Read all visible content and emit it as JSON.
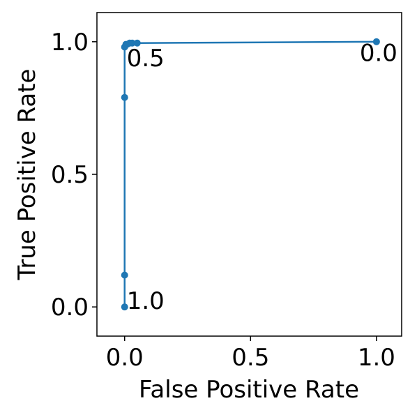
{
  "chart_data": {
    "type": "line",
    "x_label": "False Positive Rate",
    "y_label": "True Positive Rate",
    "x": [
      0,
      0,
      0,
      0,
      0.005,
      0.01,
      0.02,
      0.03,
      0.05,
      1
    ],
    "series": [
      {
        "color": "#1f77b4",
        "values": [
          0,
          0.12,
          0.79,
          0.98,
          0.99,
          0.99,
          0.995,
          0.995,
          0.995,
          1
        ]
      }
    ],
    "point_labels": [
      "1.0",
      null,
      null,
      "0.5",
      null,
      null,
      null,
      null,
      null,
      "0.0"
    ],
    "xlim": [
      -0.11,
      1.1
    ],
    "ylim": [
      -0.11,
      1.11
    ],
    "xticks": [
      {
        "value": 0,
        "label": "0.0"
      },
      {
        "value": 0.5,
        "label": "0.5"
      },
      {
        "value": 1,
        "label": "1.0"
      }
    ],
    "yticks": [
      {
        "value": 0,
        "label": "0.0"
      },
      {
        "value": 0.5,
        "label": "0.5"
      },
      {
        "value": 1,
        "label": "1.0"
      }
    ]
  }
}
